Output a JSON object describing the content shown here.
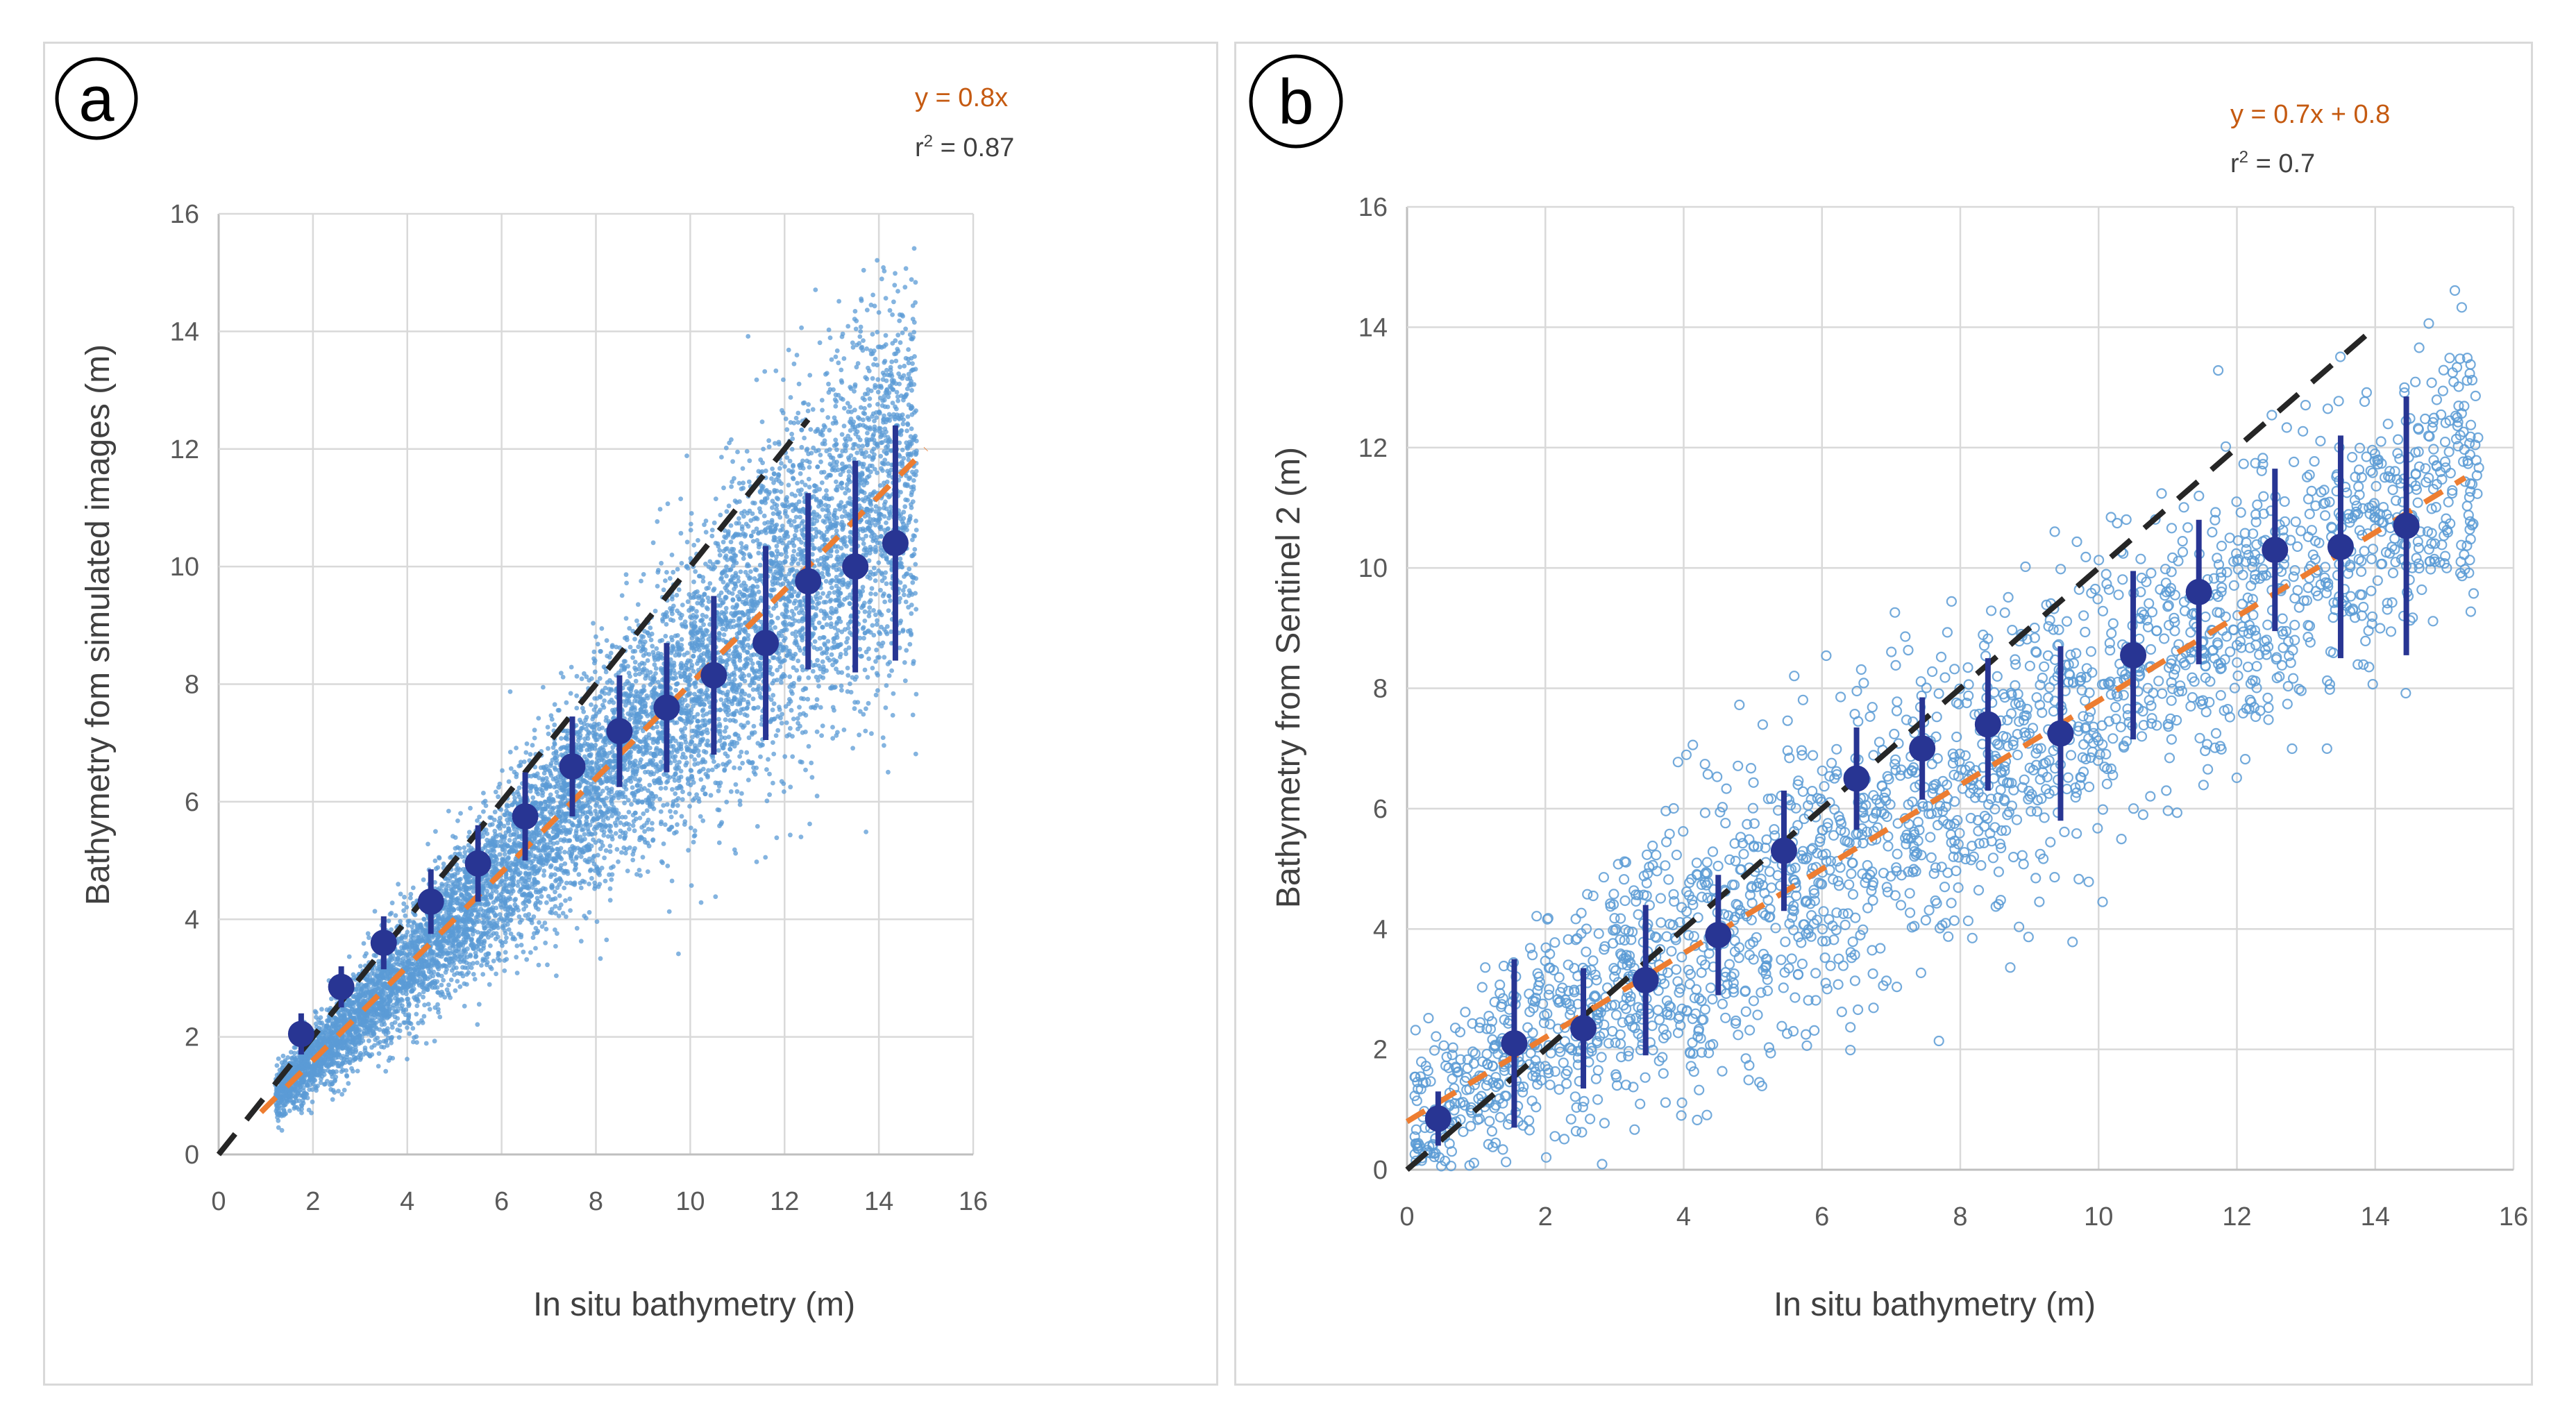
{
  "chart_data": [
    {
      "panel": "a",
      "type": "scatter",
      "xlabel": "In situ bathymetry (m)",
      "ylabel": "Bathymetry fom simulated images (m)",
      "xlim": [
        0,
        16
      ],
      "ylim": [
        0,
        16
      ],
      "xticks": [
        0,
        2,
        4,
        6,
        8,
        10,
        12,
        14,
        16
      ],
      "yticks": [
        0,
        2,
        4,
        6,
        8,
        10,
        12,
        14,
        16
      ],
      "grid": true,
      "legend": "none",
      "annotations": {
        "equation": "y = 0.8x",
        "r2_prefix": "r",
        "r2_sup": "2",
        "r2_value": " = 0.87"
      },
      "colors": {
        "scatter": "#5b9bd5",
        "mean": "#283593",
        "fit": "#ed7d31",
        "identity": "#262626"
      },
      "scatter_style": "dots",
      "identity_line": {
        "x": [
          0,
          12.5
        ],
        "y": [
          0,
          12.5
        ]
      },
      "fit_line": {
        "x": [
          0.9,
          15
        ],
        "y": [
          0.72,
          12.0
        ]
      },
      "series": [
        {
          "kind": "binned_mean_with_std",
          "x": [
            1.75,
            2.6,
            3.5,
            4.5,
            5.5,
            6.5,
            7.5,
            8.5,
            9.5,
            10.5,
            11.6,
            12.5,
            13.5,
            14.35
          ],
          "mean": [
            2.05,
            2.85,
            3.6,
            4.3,
            4.95,
            5.75,
            6.6,
            7.2,
            7.6,
            8.15,
            8.7,
            9.75,
            10.0,
            10.4
          ],
          "std": [
            0.35,
            0.35,
            0.45,
            0.55,
            0.65,
            0.75,
            0.85,
            0.95,
            1.1,
            1.35,
            1.65,
            1.5,
            1.8,
            2.0
          ]
        }
      ],
      "cloud": {
        "count": 9000,
        "x_range": [
          1.2,
          14.8
        ],
        "center_slope": 0.8,
        "spread": [
          {
            "x": 1.5,
            "sd": 0.25
          },
          {
            "x": 3,
            "sd": 0.4
          },
          {
            "x": 5,
            "sd": 0.6
          },
          {
            "x": 7,
            "sd": 0.85
          },
          {
            "x": 9,
            "sd": 1.05
          },
          {
            "x": 11,
            "sd": 1.35
          },
          {
            "x": 14,
            "sd": 1.7
          }
        ]
      }
    },
    {
      "panel": "b",
      "type": "scatter",
      "xlabel": "In situ bathymetry (m)",
      "ylabel": "Bathymetry from Sentinel 2 (m)",
      "xlim": [
        0,
        16
      ],
      "ylim": [
        0,
        16
      ],
      "xticks": [
        0,
        2,
        4,
        6,
        8,
        10,
        12,
        14,
        16
      ],
      "yticks": [
        0,
        2,
        4,
        6,
        8,
        10,
        12,
        14,
        16
      ],
      "grid": true,
      "legend": "none",
      "annotations": {
        "equation": "y = 0.7x + 0.8",
        "r2_prefix": "r",
        "r2_sup": "2",
        "r2_value": " = 0.7"
      },
      "colors": {
        "scatter": "#5b9bd5",
        "mean": "#283593",
        "fit": "#ed7d31",
        "identity": "#262626"
      },
      "scatter_style": "rings",
      "identity_line": {
        "x": [
          0,
          14
        ],
        "y": [
          0,
          14
        ]
      },
      "fit_line": {
        "x": [
          0,
          15.3
        ],
        "y": [
          0.8,
          11.5
        ]
      },
      "series": [
        {
          "kind": "binned_mean_with_std",
          "x": [
            0.45,
            1.55,
            2.55,
            3.45,
            4.5,
            5.45,
            6.5,
            7.45,
            8.4,
            9.45,
            10.5,
            11.45,
            12.55,
            13.5,
            14.45
          ],
          "mean": [
            0.85,
            2.1,
            2.35,
            3.15,
            3.9,
            5.3,
            6.5,
            7.0,
            7.4,
            7.25,
            8.55,
            9.6,
            10.3,
            10.35,
            10.7
          ],
          "std": [
            0.45,
            1.4,
            1.0,
            1.25,
            1.0,
            1.0,
            0.85,
            0.85,
            1.1,
            1.45,
            1.4,
            1.2,
            1.35,
            1.85,
            2.15
          ]
        }
      ],
      "cloud": {
        "count": 2200,
        "x_range": [
          0.1,
          15.5
        ],
        "center_slope": 0.7,
        "center_offset": 0.8,
        "spread": [
          {
            "x": 1,
            "sd": 0.7
          },
          {
            "x": 4,
            "sd": 1.3
          },
          {
            "x": 7,
            "sd": 1.3
          },
          {
            "x": 10,
            "sd": 1.2
          },
          {
            "x": 14,
            "sd": 1.1
          }
        ]
      }
    }
  ],
  "panels": {
    "a": {
      "label": "a"
    },
    "b": {
      "label": "b"
    }
  }
}
